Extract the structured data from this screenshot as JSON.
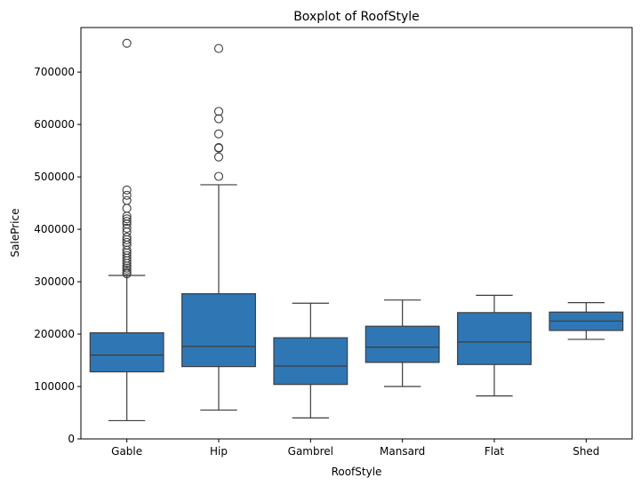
{
  "chart_data": {
    "type": "boxplot",
    "title": "Boxplot of RoofStyle",
    "xlabel": "RoofStyle",
    "ylabel": "SalePrice",
    "ylim": [
      0,
      785000
    ],
    "yticks": [
      0,
      100000,
      200000,
      300000,
      400000,
      500000,
      600000,
      700000
    ],
    "categories": [
      "Gable",
      "Hip",
      "Gambrel",
      "Mansard",
      "Flat",
      "Shed"
    ],
    "box_color": "#2f77b4",
    "line_color": "#3d3d3d",
    "grid": false,
    "boxes": [
      {
        "category": "Gable",
        "whisker_low": 34900,
        "q1": 128000,
        "median": 160000,
        "q3": 202500,
        "whisker_high": 312000,
        "outliers": [
          755000,
          475000,
          465000,
          455000,
          440000,
          425000,
          420000,
          415000,
          410000,
          402000,
          395000,
          385000,
          380000,
          375000,
          370000,
          360000,
          355000,
          350000,
          345000,
          340000,
          335000,
          330000,
          326000,
          322000,
          318000,
          315000
        ]
      },
      {
        "category": "Hip",
        "whisker_low": 55000,
        "q1": 138000,
        "median": 176500,
        "q3": 277000,
        "whisker_high": 485000,
        "outliers": [
          745000,
          625000,
          611000,
          582000,
          556000,
          555000,
          538000,
          501000
        ]
      },
      {
        "category": "Gambrel",
        "whisker_low": 40000,
        "q1": 104000,
        "median": 139000,
        "q3": 193000,
        "whisker_high": 259000,
        "outliers": []
      },
      {
        "category": "Mansard",
        "whisker_low": 100000,
        "q1": 146000,
        "median": 175000,
        "q3": 215000,
        "whisker_high": 265000,
        "outliers": []
      },
      {
        "category": "Flat",
        "whisker_low": 82000,
        "q1": 142000,
        "median": 185000,
        "q3": 241000,
        "whisker_high": 274000,
        "outliers": []
      },
      {
        "category": "Shed",
        "whisker_low": 190000,
        "q1": 207000,
        "median": 225000,
        "q3": 242000,
        "whisker_high": 260000,
        "outliers": []
      }
    ]
  }
}
